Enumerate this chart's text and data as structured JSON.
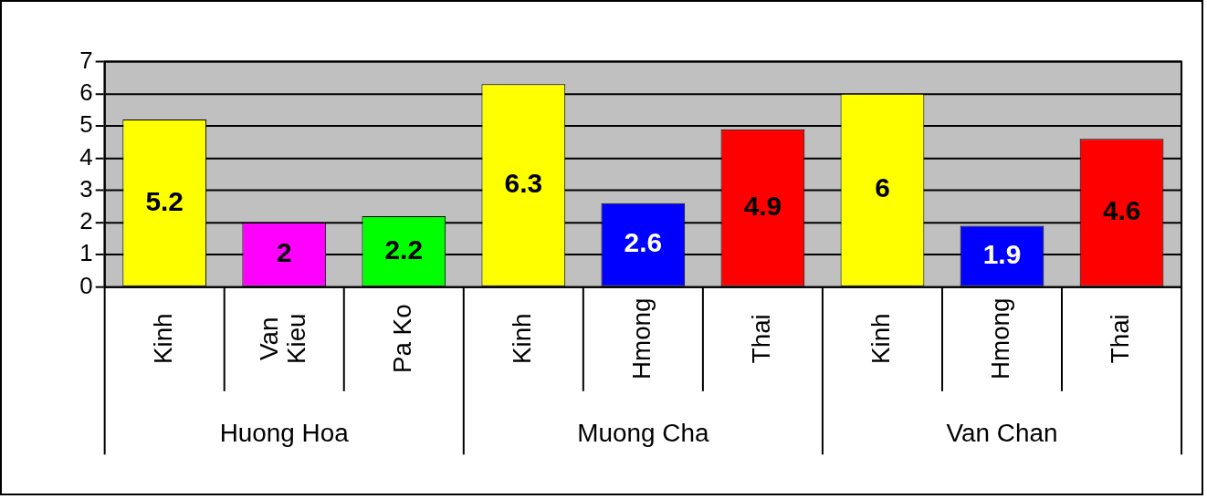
{
  "chart_data": {
    "type": "bar",
    "categories": [
      "Kinh",
      "Van Kieu",
      "Pa Ko",
      "Kinh",
      "Hmong",
      "Thai",
      "Kinh",
      "Hmong",
      "Thai"
    ],
    "values": [
      5.2,
      2,
      2.2,
      6.3,
      2.6,
      4.9,
      6,
      1.9,
      4.6
    ],
    "colors": [
      "#ffff00",
      "#ff00ff",
      "#00ff00",
      "#ffff00",
      "#0000ff",
      "#ff0000",
      "#ffff00",
      "#0000ff",
      "#ff0000"
    ],
    "ylim": [
      0,
      7
    ],
    "yticks": [
      0,
      1,
      2,
      3,
      4,
      5,
      6,
      7
    ],
    "grid": "y",
    "legend": false,
    "data_labels": true,
    "annotations": [
      "Huong Hoa",
      "Muong Cha",
      "Van Chan"
    ]
  }
}
